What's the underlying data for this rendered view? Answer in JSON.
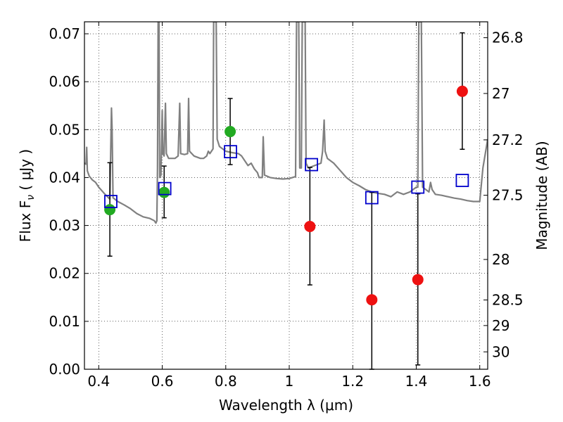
{
  "chart_data": {
    "type": "scatter",
    "xlabel": "Wavelength  λ (μm)",
    "ylabel": "Flux  F_ν  ( μJy )",
    "y2label": "Magnitude (AB)",
    "xlim": [
      0.355,
      1.625
    ],
    "ylim": [
      0.0,
      0.0725
    ],
    "x_ticks": [
      {
        "value": 0.4,
        "label": "0.4"
      },
      {
        "value": 0.6,
        "label": "0.6"
      },
      {
        "value": 0.8,
        "label": "0.8"
      },
      {
        "value": 1.0,
        "label": "1"
      },
      {
        "value": 1.2,
        "label": "1.2"
      },
      {
        "value": 1.4,
        "label": "1.4"
      },
      {
        "value": 1.6,
        "label": "1.6"
      }
    ],
    "y_ticks": [
      {
        "value": 0.0,
        "label": "0.00"
      },
      {
        "value": 0.01,
        "label": "0.01"
      },
      {
        "value": 0.02,
        "label": "0.02"
      },
      {
        "value": 0.03,
        "label": "0.03"
      },
      {
        "value": 0.04,
        "label": "0.04"
      },
      {
        "value": 0.05,
        "label": "0.05"
      },
      {
        "value": 0.06,
        "label": "0.06"
      },
      {
        "value": 0.07,
        "label": "0.07"
      }
    ],
    "y2_ticks": [
      {
        "mag": 26.8,
        "label": "26.8"
      },
      {
        "mag": 27.0,
        "label": "27"
      },
      {
        "mag": 27.2,
        "label": "27.2"
      },
      {
        "mag": 27.5,
        "label": "27.5"
      },
      {
        "mag": 28.0,
        "label": "28"
      },
      {
        "mag": 28.5,
        "label": "28.5"
      },
      {
        "mag": 29.0,
        "label": "29"
      },
      {
        "mag": 30.0,
        "label": "30"
      }
    ],
    "grid": true,
    "series": [
      {
        "type": "errorbar-points",
        "color": "#22aa22",
        "points": [
          {
            "x": 0.435,
            "y": 0.0333,
            "yerr_low": 0.0236,
            "yerr_high": 0.0431
          },
          {
            "x": 0.606,
            "y": 0.0369,
            "yerr_low": 0.0316,
            "yerr_high": 0.0424
          },
          {
            "x": 0.814,
            "y": 0.0496,
            "yerr_low": 0.0427,
            "yerr_high": 0.0565
          }
        ]
      },
      {
        "type": "errorbar-points",
        "color": "#ee1111",
        "points": [
          {
            "x": 1.065,
            "y": 0.0298,
            "yerr_low": 0.0176,
            "yerr_high": 0.0421
          },
          {
            "x": 1.26,
            "y": 0.0145,
            "yerr_low": 0.0,
            "yerr_high": 0.0369
          },
          {
            "x": 1.405,
            "y": 0.0187,
            "yerr_low": 0.0009,
            "yerr_high": 0.0366
          },
          {
            "x": 1.545,
            "y": 0.058,
            "yerr_low": 0.0459,
            "yerr_high": 0.0702
          }
        ]
      },
      {
        "type": "open-squares",
        "color": "#0000cc",
        "points": [
          {
            "x": 0.438,
            "y": 0.035
          },
          {
            "x": 0.608,
            "y": 0.0377
          },
          {
            "x": 0.815,
            "y": 0.0454
          },
          {
            "x": 1.07,
            "y": 0.0427
          },
          {
            "x": 1.26,
            "y": 0.0358
          },
          {
            "x": 1.405,
            "y": 0.038
          },
          {
            "x": 1.545,
            "y": 0.0394
          }
        ]
      },
      {
        "type": "line",
        "color": "#808080",
        "points": [
          [
            0.355,
            0.043
          ],
          [
            0.36,
            0.0428
          ],
          [
            0.362,
            0.0463
          ],
          [
            0.364,
            0.0414
          ],
          [
            0.37,
            0.0403
          ],
          [
            0.38,
            0.0395
          ],
          [
            0.39,
            0.039
          ],
          [
            0.4,
            0.038
          ],
          [
            0.42,
            0.0365
          ],
          [
            0.435,
            0.0355
          ],
          [
            0.44,
            0.0545
          ],
          [
            0.442,
            0.05
          ],
          [
            0.445,
            0.0358
          ],
          [
            0.46,
            0.035
          ],
          [
            0.48,
            0.0343
          ],
          [
            0.5,
            0.0335
          ],
          [
            0.52,
            0.0325
          ],
          [
            0.54,
            0.0318
          ],
          [
            0.56,
            0.0315
          ],
          [
            0.575,
            0.031
          ],
          [
            0.58,
            0.0305
          ],
          [
            0.583,
            0.031
          ],
          [
            0.585,
            0.042
          ],
          [
            0.587,
            0.0725
          ],
          [
            0.59,
            0.0725
          ],
          [
            0.592,
            0.04
          ],
          [
            0.596,
            0.0405
          ],
          [
            0.6,
            0.054
          ],
          [
            0.602,
            0.045
          ],
          [
            0.606,
            0.0445
          ],
          [
            0.61,
            0.0555
          ],
          [
            0.613,
            0.045
          ],
          [
            0.62,
            0.044
          ],
          [
            0.64,
            0.044
          ],
          [
            0.65,
            0.0445
          ],
          [
            0.655,
            0.0555
          ],
          [
            0.658,
            0.045
          ],
          [
            0.67,
            0.0448
          ],
          [
            0.68,
            0.045
          ],
          [
            0.683,
            0.0565
          ],
          [
            0.686,
            0.0455
          ],
          [
            0.7,
            0.0445
          ],
          [
            0.72,
            0.044
          ],
          [
            0.73,
            0.044
          ],
          [
            0.74,
            0.0445
          ],
          [
            0.745,
            0.0455
          ],
          [
            0.75,
            0.045
          ],
          [
            0.76,
            0.046
          ],
          [
            0.762,
            0.0725
          ],
          [
            0.77,
            0.0725
          ],
          [
            0.773,
            0.048
          ],
          [
            0.78,
            0.0465
          ],
          [
            0.79,
            0.046
          ],
          [
            0.8,
            0.0455
          ],
          [
            0.82,
            0.0452
          ],
          [
            0.84,
            0.045
          ],
          [
            0.85,
            0.0445
          ],
          [
            0.87,
            0.0425
          ],
          [
            0.88,
            0.043
          ],
          [
            0.89,
            0.0418
          ],
          [
            0.9,
            0.041
          ],
          [
            0.905,
            0.04
          ],
          [
            0.915,
            0.04
          ],
          [
            0.918,
            0.0485
          ],
          [
            0.922,
            0.0405
          ],
          [
            0.94,
            0.04
          ],
          [
            0.96,
            0.0398
          ],
          [
            0.98,
            0.0397
          ],
          [
            1.0,
            0.0398
          ],
          [
            1.01,
            0.04
          ],
          [
            1.02,
            0.0402
          ],
          [
            1.023,
            0.0725
          ],
          [
            1.03,
            0.0725
          ],
          [
            1.033,
            0.042
          ],
          [
            1.038,
            0.042
          ],
          [
            1.041,
            0.0725
          ],
          [
            1.05,
            0.0725
          ],
          [
            1.053,
            0.043
          ],
          [
            1.06,
            0.042
          ],
          [
            1.08,
            0.0425
          ],
          [
            1.1,
            0.043
          ],
          [
            1.105,
            0.0455
          ],
          [
            1.11,
            0.052
          ],
          [
            1.113,
            0.0455
          ],
          [
            1.12,
            0.044
          ],
          [
            1.14,
            0.043
          ],
          [
            1.16,
            0.0415
          ],
          [
            1.18,
            0.04
          ],
          [
            1.2,
            0.039
          ],
          [
            1.22,
            0.0383
          ],
          [
            1.24,
            0.0375
          ],
          [
            1.26,
            0.037
          ],
          [
            1.28,
            0.0367
          ],
          [
            1.3,
            0.0365
          ],
          [
            1.32,
            0.036
          ],
          [
            1.34,
            0.037
          ],
          [
            1.36,
            0.0365
          ],
          [
            1.38,
            0.037
          ],
          [
            1.39,
            0.0375
          ],
          [
            1.4,
            0.038
          ],
          [
            1.405,
            0.038
          ],
          [
            1.408,
            0.0725
          ],
          [
            1.416,
            0.0725
          ],
          [
            1.42,
            0.038
          ],
          [
            1.44,
            0.037
          ],
          [
            1.445,
            0.039
          ],
          [
            1.45,
            0.0375
          ],
          [
            1.46,
            0.0365
          ],
          [
            1.48,
            0.0363
          ],
          [
            1.5,
            0.036
          ],
          [
            1.52,
            0.0357
          ],
          [
            1.54,
            0.0355
          ],
          [
            1.56,
            0.0352
          ],
          [
            1.58,
            0.035
          ],
          [
            1.6,
            0.035
          ],
          [
            1.61,
            0.042
          ],
          [
            1.625,
            0.048
          ]
        ]
      }
    ]
  }
}
